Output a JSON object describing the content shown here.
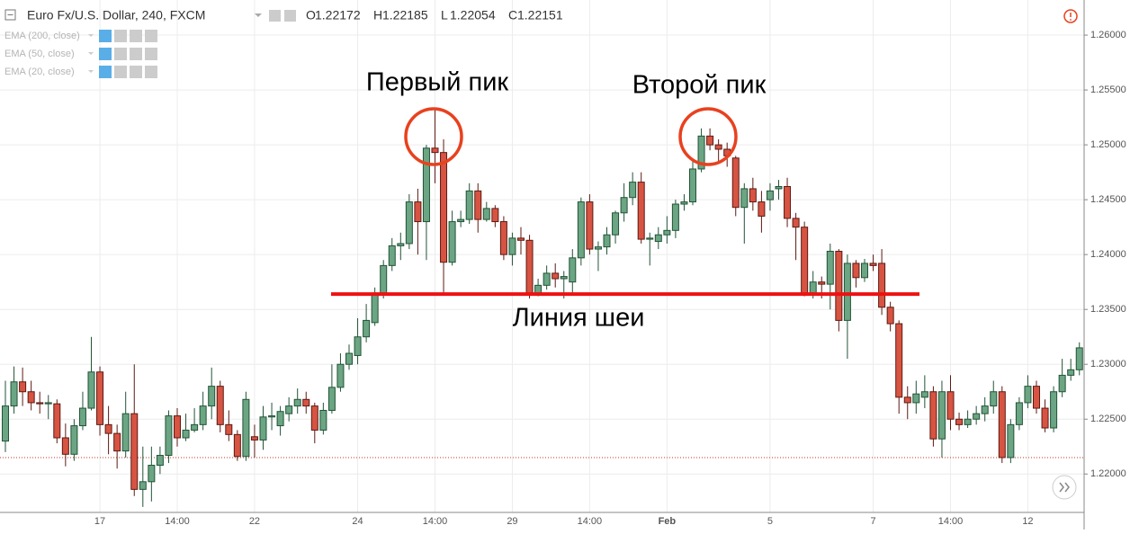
{
  "chart_data": {
    "type": "candlestick",
    "title": "Euro Fx/U.S. Dollar, 240, FXCM",
    "legend_ohlc": [
      {
        "label": "O",
        "value": "1.22172"
      },
      {
        "label": "H",
        "value": "1.22185"
      },
      {
        "label": "L",
        "value": "1.22054"
      },
      {
        "label": "C",
        "value": "1.22151"
      }
    ],
    "indicators": [
      "EMA (200, close)",
      "EMA (50, close)",
      "EMA (20, close)"
    ],
    "annotations": [
      "Первый пик",
      "Второй пик",
      "Линия шеи"
    ],
    "neckline": 1.2364,
    "price_line": 1.2215,
    "up_color": "#6ba583",
    "down_color": "#d75442",
    "categories": [
      null,
      null,
      null,
      null,
      null,
      null,
      null,
      null,
      null,
      null,
      null,
      "17",
      null,
      null,
      null,
      null,
      null,
      null,
      null,
      null,
      "14:00",
      null,
      null,
      null,
      null,
      null,
      null,
      null,
      null,
      "22",
      null,
      null,
      null,
      null,
      null,
      null,
      null,
      null,
      null,
      null,
      null,
      "24",
      null,
      null,
      null,
      null,
      null,
      null,
      null,
      null,
      "14:00",
      null,
      null,
      null,
      null,
      null,
      null,
      null,
      null,
      "29",
      null,
      null,
      null,
      null,
      null,
      null,
      null,
      null,
      "14:00",
      null,
      null,
      null,
      null,
      null,
      null,
      null,
      null,
      "Feb",
      null,
      null,
      null,
      null,
      null,
      null,
      null,
      null,
      null,
      null,
      null,
      "5",
      null,
      null,
      null,
      null,
      null,
      null,
      null,
      null,
      null,
      null,
      null,
      "7",
      null,
      null,
      null,
      null,
      null,
      null,
      null,
      null,
      "14:00",
      null,
      null,
      null,
      null,
      null,
      null,
      null,
      null,
      "12",
      null,
      null,
      null,
      null,
      null,
      null
    ],
    "open": [
      1.223,
      1.2262,
      1.2284,
      1.2275,
      1.2265,
      1.2264,
      1.2264,
      1.2233,
      1.2218,
      1.2244,
      1.226,
      1.2293,
      1.2245,
      1.2237,
      1.2221,
      1.2255,
      1.2186,
      1.2193,
      1.2208,
      1.2217,
      1.2253,
      1.2233,
      1.224,
      1.2245,
      1.2262,
      1.228,
      1.2245,
      1.2236,
      1.2216,
      1.2234,
      1.2231,
      1.2252,
      1.2244,
      1.2255,
      1.2262,
      1.2268,
      1.2262,
      1.224,
      1.2258,
      1.2279,
      1.23,
      1.2308,
      1.2325,
      1.2338,
      1.2365,
      1.239,
      1.2408,
      1.241,
      1.2448,
      1.243,
      1.2497,
      1.2493,
      1.2393,
      1.243,
      1.2432,
      1.2458,
      1.2432,
      1.2442,
      1.243,
      1.24,
      1.2415,
      1.2413,
      1.2365,
      1.2372,
      1.2383,
      1.2378,
      1.2375,
      1.2397,
      1.2448,
      1.2405,
      1.2407,
      1.2418,
      1.2438,
      1.2452,
      1.2466,
      1.2414,
      1.2412,
      1.2418,
      1.2422,
      1.2446,
      1.2448,
      1.2478,
      1.2508,
      1.25,
      1.2496,
      1.2488,
      1.2443,
      1.246,
      1.2448,
      1.245,
      1.246,
      1.2462,
      1.2433,
      1.2425,
      1.2365,
      1.2375,
      1.2373,
      1.2403,
      1.234,
      1.2392,
      1.2379,
      1.2392,
      1.2392,
      1.2352,
      1.2337,
      1.227,
      1.2265,
      1.227,
      1.2275,
      1.2232,
      1.2275,
      1.225,
      1.2245,
      1.225,
      1.2255,
      1.2262,
      1.2275,
      1.2215,
      1.2245,
      1.2265,
      1.228,
      1.226,
      1.2242,
      1.2275,
      1.229,
      1.2295
    ],
    "high": [
      1.2285,
      1.2298,
      1.2297,
      1.2285,
      1.2275,
      1.2272,
      1.2268,
      1.2246,
      1.225,
      1.2275,
      1.2325,
      1.2298,
      1.2262,
      1.2245,
      1.2275,
      1.23,
      1.2225,
      1.2225,
      1.2225,
      1.2258,
      1.226,
      1.2255,
      1.226,
      1.2275,
      1.2297,
      1.2285,
      1.2258,
      1.224,
      1.2275,
      1.2245,
      1.2262,
      1.2265,
      1.2262,
      1.227,
      1.2278,
      1.2275,
      1.2265,
      1.2265,
      1.23,
      1.231,
      1.2318,
      1.2342,
      1.2355,
      1.237,
      1.2395,
      1.2415,
      1.242,
      1.2455,
      1.246,
      1.25,
      1.2534,
      1.2505,
      1.244,
      1.244,
      1.2465,
      1.2465,
      1.2448,
      1.2445,
      1.2435,
      1.242,
      1.2425,
      1.2418,
      1.2378,
      1.239,
      1.2392,
      1.2385,
      1.2405,
      1.2452,
      1.2455,
      1.2412,
      1.2425,
      1.244,
      1.2465,
      1.2475,
      1.2475,
      1.242,
      1.2425,
      1.2435,
      1.245,
      1.2455,
      1.2485,
      1.2515,
      1.2515,
      1.2505,
      1.2502,
      1.249,
      1.2465,
      1.247,
      1.2458,
      1.2465,
      1.2468,
      1.247,
      1.2438,
      1.243,
      1.2385,
      1.238,
      1.241,
      1.2405,
      1.24,
      1.2395,
      1.2396,
      1.24,
      1.2405,
      1.2357,
      1.234,
      1.228,
      1.2285,
      1.229,
      1.228,
      1.2285,
      1.229,
      1.2256,
      1.2258,
      1.2262,
      1.227,
      1.2285,
      1.228,
      1.225,
      1.227,
      1.229,
      1.2285,
      1.2268,
      1.228,
      1.2305,
      1.2305,
      1.232
    ],
    "low": [
      1.222,
      1.2255,
      1.2262,
      1.2258,
      1.2255,
      1.225,
      1.2228,
      1.2207,
      1.2212,
      1.224,
      1.2258,
      1.2235,
      1.2218,
      1.2205,
      1.2215,
      1.218,
      1.217,
      1.2175,
      1.22,
      1.221,
      1.2225,
      1.223,
      1.2238,
      1.224,
      1.225,
      1.2238,
      1.223,
      1.2212,
      1.2212,
      1.2215,
      1.2222,
      1.224,
      1.2235,
      1.2248,
      1.2255,
      1.2255,
      1.2228,
      1.2236,
      1.2255,
      1.2275,
      1.2295,
      1.23,
      1.232,
      1.2335,
      1.236,
      1.2385,
      1.2395,
      1.2405,
      1.24,
      1.2395,
      1.2465,
      1.2365,
      1.239,
      1.2425,
      1.2428,
      1.242,
      1.243,
      1.2425,
      1.2395,
      1.239,
      1.24,
      1.236,
      1.2362,
      1.2368,
      1.237,
      1.236,
      1.2365,
      1.239,
      1.24,
      1.2385,
      1.24,
      1.241,
      1.243,
      1.2445,
      1.241,
      1.239,
      1.2405,
      1.241,
      1.2415,
      1.244,
      1.2445,
      1.2475,
      1.2495,
      1.2485,
      1.248,
      1.2435,
      1.241,
      1.244,
      1.242,
      1.244,
      1.245,
      1.2425,
      1.2395,
      1.2362,
      1.236,
      1.236,
      1.235,
      1.233,
      1.2305,
      1.237,
      1.2375,
      1.2385,
      1.2345,
      1.233,
      1.2255,
      1.225,
      1.2255,
      1.226,
      1.2225,
      1.2215,
      1.224,
      1.224,
      1.2242,
      1.2245,
      1.2248,
      1.2255,
      1.221,
      1.221,
      1.224,
      1.226,
      1.2255,
      1.2238,
      1.2238,
      1.227,
      1.2285,
      1.229
    ],
    "close": [
      1.2262,
      1.2284,
      1.2275,
      1.2265,
      1.2264,
      1.2265,
      1.2233,
      1.2218,
      1.2244,
      1.226,
      1.2293,
      1.2245,
      1.2237,
      1.2221,
      1.2255,
      1.2186,
      1.2193,
      1.2208,
      1.2217,
      1.2253,
      1.2233,
      1.224,
      1.2245,
      1.2262,
      1.228,
      1.2245,
      1.2236,
      1.2216,
      1.2268,
      1.2231,
      1.2252,
      1.2253,
      1.2257,
      1.2262,
      1.2268,
      1.2262,
      1.224,
      1.2258,
      1.2279,
      1.23,
      1.231,
      1.2325,
      1.234,
      1.2365,
      1.239,
      1.2408,
      1.241,
      1.2448,
      1.243,
      1.2497,
      1.2493,
      1.2393,
      1.243,
      1.2432,
      1.2458,
      1.2432,
      1.2442,
      1.243,
      1.24,
      1.2415,
      1.2413,
      1.2365,
      1.2372,
      1.2383,
      1.2378,
      1.238,
      1.2397,
      1.2448,
      1.2405,
      1.2407,
      1.2418,
      1.2438,
      1.2452,
      1.2466,
      1.2414,
      1.2415,
      1.2418,
      1.2422,
      1.2446,
      1.2448,
      1.2478,
      1.2508,
      1.25,
      1.2496,
      1.249,
      1.2443,
      1.246,
      1.2448,
      1.2435,
      1.2458,
      1.2462,
      1.2433,
      1.2425,
      1.2365,
      1.2375,
      1.2373,
      1.2403,
      1.234,
      1.2392,
      1.2379,
      1.2392,
      1.239,
      1.2352,
      1.2337,
      1.227,
      1.2265,
      1.2273,
      1.2275,
      1.2232,
      1.2275,
      1.225,
      1.2245,
      1.225,
      1.2255,
      1.2262,
      1.2275,
      1.2215,
      1.2245,
      1.2265,
      1.228,
      1.226,
      1.2242,
      1.2275,
      1.229,
      1.2295,
      1.2315
    ],
    "ylim": [
      1.2165,
      1.2632
    ],
    "yticks": [
      {
        "value": 1.22,
        "label": "1.22000"
      },
      {
        "value": 1.225,
        "label": "1.22500"
      },
      {
        "value": 1.23,
        "label": "1.23000"
      },
      {
        "value": 1.235,
        "label": "1.23500"
      },
      {
        "value": 1.24,
        "label": "1.24000"
      },
      {
        "value": 1.245,
        "label": "1.24500"
      },
      {
        "value": 1.25,
        "label": "1.25000"
      },
      {
        "value": 1.255,
        "label": "1.25500"
      },
      {
        "value": 1.26,
        "label": "1.26000"
      }
    ],
    "grid": true
  }
}
